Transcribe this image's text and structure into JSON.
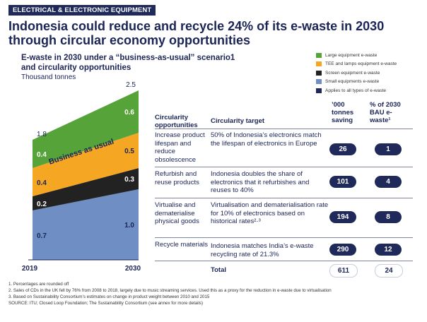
{
  "header": {
    "tag": "ELECTRICAL & ELECTRONIC EQUIPMENT",
    "title": "Indonesia could reduce and recycle 24% of its e-waste in 2030 through circular economy opportunities",
    "subtitle": "E-waste in 2030 under a “business-as-usual” scenario1 and circularity opportunities",
    "unit": "Thousand tonnes"
  },
  "legend": [
    {
      "label": "Large equipment e-waste",
      "color": "#56a33a"
    },
    {
      "label": "TEE and lamps equipment e-waste",
      "color": "#f5a623"
    },
    {
      "label": "Screen equipment e-waste",
      "color": "#222222"
    },
    {
      "label": "Small equipments e-waste",
      "color": "#6f8fc4"
    },
    {
      "label": "Applies to all types of e-waste",
      "color": "#1f2a5a"
    }
  ],
  "chart_data": {
    "type": "area",
    "x": [
      "2019",
      "2030"
    ],
    "series": [
      {
        "name": "Small equipments e-waste",
        "values": [
          0.7,
          1.0
        ],
        "color": "#6f8fc4"
      },
      {
        "name": "Screen equipment e-waste",
        "values": [
          0.2,
          0.3
        ],
        "color": "#222222"
      },
      {
        "name": "TEE and lamps equipment e-waste",
        "values": [
          0.4,
          0.5
        ],
        "color": "#f5a623"
      },
      {
        "name": "Large equipment e-waste",
        "values": [
          0.4,
          0.6
        ],
        "color": "#56a33a"
      }
    ],
    "totals": [
      1.8,
      2.5
    ],
    "annotation": "Business as usual",
    "value_labels": {
      "2019": [
        "0.7",
        "0.2",
        "0.4",
        "0.4"
      ],
      "2030": [
        "1.0",
        "0.3",
        "0.5",
        "0.6"
      ],
      "totals": [
        "1.8",
        "2.5"
      ]
    }
  },
  "table": {
    "headers": {
      "opportunity": "Circularity opportunities",
      "target": "Circularity target",
      "saving": "’000 tonnes saving",
      "share": "% of 2030 BAU e-waste¹"
    },
    "rows": [
      {
        "opportunity": "Increase product lifespan and reduce obsolescence",
        "target": "50% of Indonesia’s electronics match the lifespan of electronics in Europe",
        "saving": "26",
        "share": "1"
      },
      {
        "opportunity": "Refurbish and reuse products",
        "target": "Indonesia doubles the share of electronics that it refurbishes and reuses to 40%",
        "saving": "101",
        "share": "4"
      },
      {
        "opportunity": "Virtualise and dematerialise physical goods",
        "target": "Virtualisation and dematerialisation rate for 10% of electronics based on historical rates²·³",
        "saving": "194",
        "share": "8"
      },
      {
        "opportunity": "Recycle materials",
        "target": "Indonesia matches India’s e-waste recycling rate of 21.3%",
        "saving": "290",
        "share": "12"
      }
    ],
    "total": {
      "label": "Total",
      "saving": "611",
      "share": "24"
    }
  },
  "footnotes": [
    "1. Percentages are rounded off",
    "2. Sales of CDs in the UK fell by 76% from 2008 to 2018, largely due to music streaming services. Used this as a proxy for the reduction in e-waste due to virtualisation",
    "3. Based on Sustainability Consortium’s estimates on change in product weight between 2010 and 2015",
    "SOURCE: ITU; Closed Loop Foundation; The Sustainability Consortium (see annex for more details)"
  ]
}
